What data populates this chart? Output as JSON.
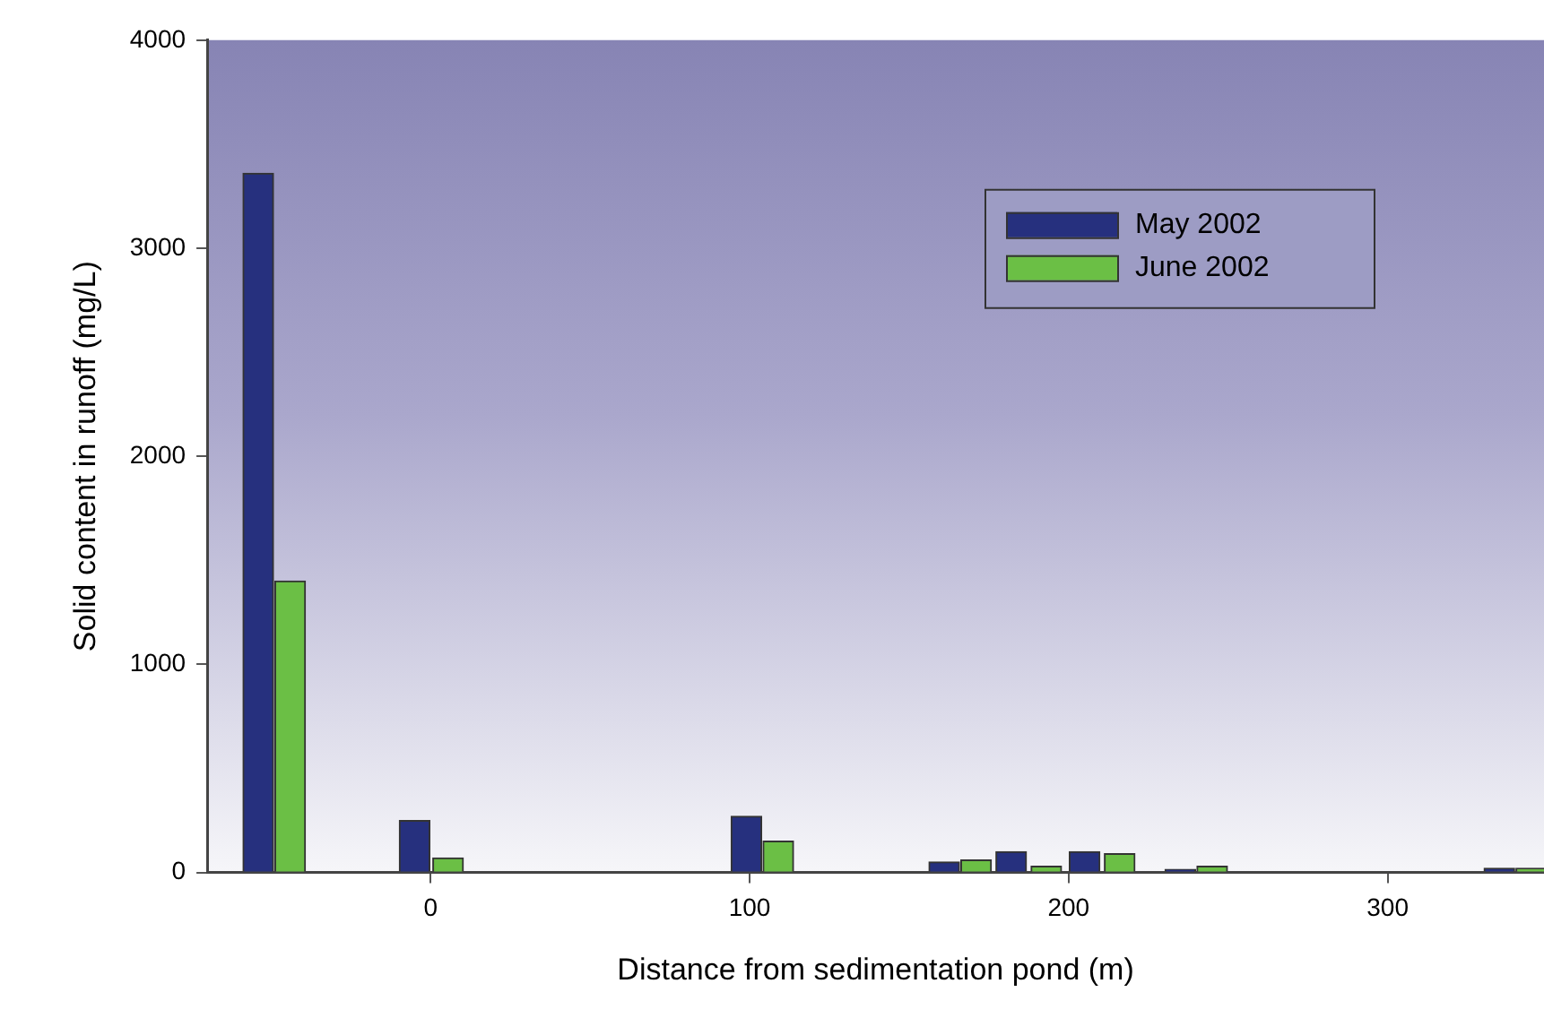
{
  "chart_data": {
    "type": "bar",
    "xlabel": "Distance from sedimentation pond (m)",
    "ylabel": "Solid content in runoff (mg/L)",
    "xlim": [
      -70,
      349
    ],
    "xticks": [
      0,
      100,
      200,
      300
    ],
    "ylim": [
      0,
      4000
    ],
    "yticks": [
      0,
      1000,
      2000,
      3000,
      4000
    ],
    "grid": false,
    "legend": "top right",
    "series": [
      {
        "name": "May 2002",
        "color": "#26307e",
        "x": [
          -54,
          -5,
          99,
          161,
          182,
          205,
          235,
          335
        ],
        "values": [
          3360,
          250,
          270,
          50,
          100,
          100,
          15,
          20
        ]
      },
      {
        "name": "June 2002",
        "color": "#6bbf45",
        "x": [
          -44,
          5.5,
          109,
          171,
          193,
          216,
          245,
          345
        ],
        "values": [
          1400,
          70,
          150,
          60,
          30,
          90,
          30,
          20
        ]
      }
    ]
  }
}
